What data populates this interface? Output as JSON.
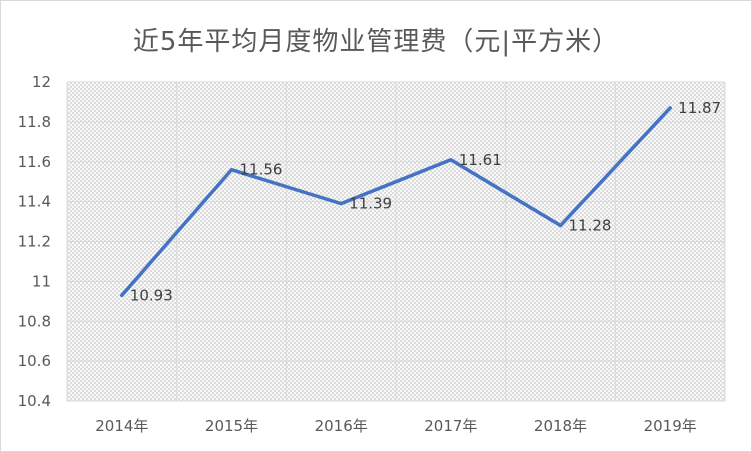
{
  "chart_data": {
    "type": "line",
    "title": "近5年平均月度物业管理费（元|平方米）",
    "categories": [
      "2014年",
      "2015年",
      "2016年",
      "2017年",
      "2018年",
      "2019年"
    ],
    "series": [
      {
        "values": [
          10.93,
          11.56,
          11.39,
          11.61,
          11.28,
          11.87
        ]
      }
    ],
    "data_labels": [
      "10.93",
      "11.56",
      "11.39",
      "11.61",
      "11.28",
      "11.87"
    ],
    "ylim": [
      10.4,
      12
    ],
    "yticks": [
      10.4,
      10.6,
      10.8,
      11,
      11.2,
      11.4,
      11.6,
      11.8,
      12
    ],
    "ytick_labels": [
      "10.4",
      "10.6",
      "10.8",
      "11",
      "11.2",
      "11.4",
      "11.6",
      "11.8",
      "12"
    ],
    "grid": true,
    "legend": "none",
    "line_color": "#4472c4"
  }
}
